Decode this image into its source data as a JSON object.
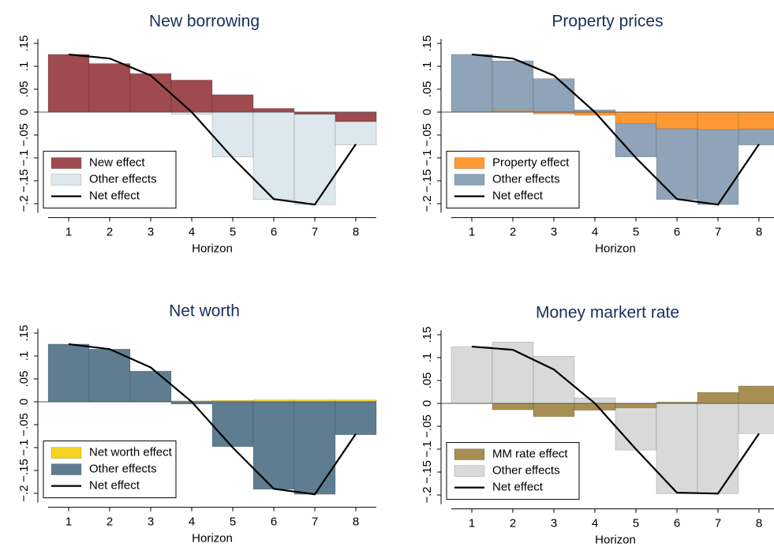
{
  "chart_data": [
    {
      "type": "bar",
      "title": "New borrowing",
      "x_label": "Horizon",
      "x": [
        1,
        2,
        3,
        4,
        5,
        6,
        7,
        8
      ],
      "xlim": [
        0.5,
        8.5
      ],
      "xticks": [
        1,
        2,
        3,
        4,
        5,
        6,
        7,
        8
      ],
      "ylim": [
        -0.22,
        0.16
      ],
      "yticks": [
        {
          "value": -0.2,
          "label": "-.2"
        },
        {
          "value": -0.15,
          "label": "-.15"
        },
        {
          "value": -0.1,
          "label": "-.1"
        },
        {
          "value": -0.05,
          "label": "-.05"
        },
        0,
        {
          "value": 0.05,
          "label": ".05"
        },
        {
          "value": 0.1,
          "label": ".1"
        },
        {
          "value": 0.15,
          "label": ".15"
        }
      ],
      "legend": "lower left",
      "series": [
        {
          "name": "New effect",
          "color": "#9e4a4f",
          "values": [
            0.126,
            0.106,
            0.084,
            0.07,
            0.038,
            0.008,
            -0.005,
            -0.021
          ]
        },
        {
          "name": "Other effects",
          "color": "#dde8ee",
          "values": [
            0,
            0,
            0,
            -0.005,
            -0.098,
            -0.191,
            -0.202,
            -0.072
          ]
        },
        {
          "name": "Net effect",
          "color": "#000000",
          "type": "line",
          "values": [
            0.126,
            0.117,
            0.08,
            0.0,
            -0.1,
            -0.19,
            -0.202,
            -0.07
          ]
        }
      ]
    },
    {
      "type": "bar",
      "title": "Property prices",
      "x_label": "Horizon",
      "x": [
        1,
        2,
        3,
        4,
        5,
        6,
        7,
        8
      ],
      "xlim": [
        0.5,
        8.5
      ],
      "xticks": [
        1,
        2,
        3,
        4,
        5,
        6,
        7,
        8
      ],
      "ylim": [
        -0.22,
        0.16
      ],
      "yticks": [
        {
          "value": -0.2,
          "label": "-.2"
        },
        {
          "value": -0.15,
          "label": "-.15"
        },
        {
          "value": -0.1,
          "label": "-.1"
        },
        {
          "value": -0.05,
          "label": "-.05"
        },
        0,
        {
          "value": 0.05,
          "label": ".05"
        },
        {
          "value": 0.1,
          "label": ".1"
        },
        {
          "value": 0.15,
          "label": ".15"
        }
      ],
      "legend": "lower left",
      "series": [
        {
          "name": "Property effect",
          "color": "#ff9933",
          "values": [
            0,
            0.003,
            -0.004,
            -0.007,
            -0.025,
            -0.036,
            -0.038,
            -0.037
          ]
        },
        {
          "name": "Other effects",
          "color": "#8fa4b8",
          "values": [
            0.126,
            0.112,
            0.073,
            0.005,
            -0.098,
            -0.191,
            -0.202,
            -0.072
          ]
        },
        {
          "name": "Net effect",
          "color": "#000000",
          "type": "line",
          "values": [
            0.126,
            0.117,
            0.08,
            0.0,
            -0.1,
            -0.19,
            -0.202,
            -0.07
          ]
        }
      ]
    },
    {
      "type": "bar",
      "title": "Net worth",
      "x_label": "Horizon",
      "x": [
        1,
        2,
        3,
        4,
        5,
        6,
        7,
        8
      ],
      "xlim": [
        0.5,
        8.5
      ],
      "xticks": [
        1,
        2,
        3,
        4,
        5,
        6,
        7,
        8
      ],
      "ylim": [
        -0.22,
        0.16
      ],
      "yticks": [
        {
          "value": -0.2,
          "label": "-.2"
        },
        {
          "value": -0.15,
          "label": "-.15"
        },
        {
          "value": -0.1,
          "label": "-.1"
        },
        {
          "value": -0.05,
          "label": "-.05"
        },
        0,
        {
          "value": 0.05,
          "label": ".05"
        },
        {
          "value": 0.1,
          "label": ".1"
        },
        {
          "value": 0.15,
          "label": ".15"
        }
      ],
      "legend": "lower left",
      "series": [
        {
          "name": "Net worth effect",
          "color": "#f5d321",
          "values": [
            0,
            0.001,
            0.001,
            0.002,
            0.003,
            0.004,
            0.004,
            0.004
          ]
        },
        {
          "name": "Other effects",
          "color": "#5f7d91",
          "values": [
            0.126,
            0.115,
            0.067,
            -0.005,
            -0.098,
            -0.191,
            -0.202,
            -0.072
          ]
        },
        {
          "name": "Net effect",
          "color": "#000000",
          "type": "line",
          "values": [
            0.126,
            0.115,
            0.075,
            0.0,
            -0.1,
            -0.19,
            -0.202,
            -0.07
          ]
        }
      ]
    },
    {
      "type": "bar",
      "title": "Money markert rate",
      "x_label": "Horizon",
      "x": [
        1,
        2,
        3,
        4,
        5,
        6,
        7,
        8
      ],
      "xlim": [
        0.5,
        8.5
      ],
      "xticks": [
        1,
        2,
        3,
        4,
        5,
        6,
        7,
        8
      ],
      "ylim": [
        -0.22,
        0.16
      ],
      "yticks": [
        {
          "value": -0.2,
          "label": "-.2"
        },
        {
          "value": -0.15,
          "label": "-.15"
        },
        {
          "value": -0.1,
          "label": "-.1"
        },
        {
          "value": -0.05,
          "label": "-.05"
        },
        0,
        {
          "value": 0.05,
          "label": ".05"
        },
        {
          "value": 0.1,
          "label": ".1"
        },
        {
          "value": 0.15,
          "label": ".15"
        }
      ],
      "legend": "lower left",
      "series": [
        {
          "name": "MM rate effect",
          "color": "#a78f53",
          "values": [
            0,
            -0.014,
            -0.029,
            -0.015,
            -0.01,
            0.003,
            0.024,
            0.038
          ]
        },
        {
          "name": "Other effects",
          "color": "#d9d9d9",
          "values": [
            0.124,
            0.134,
            0.103,
            0.012,
            -0.102,
            -0.197,
            -0.197,
            -0.066
          ]
        },
        {
          "name": "Net effect",
          "color": "#000000",
          "type": "line",
          "values": [
            0.124,
            0.117,
            0.074,
            0.0,
            -0.1,
            -0.195,
            -0.197,
            -0.066
          ]
        }
      ]
    }
  ]
}
